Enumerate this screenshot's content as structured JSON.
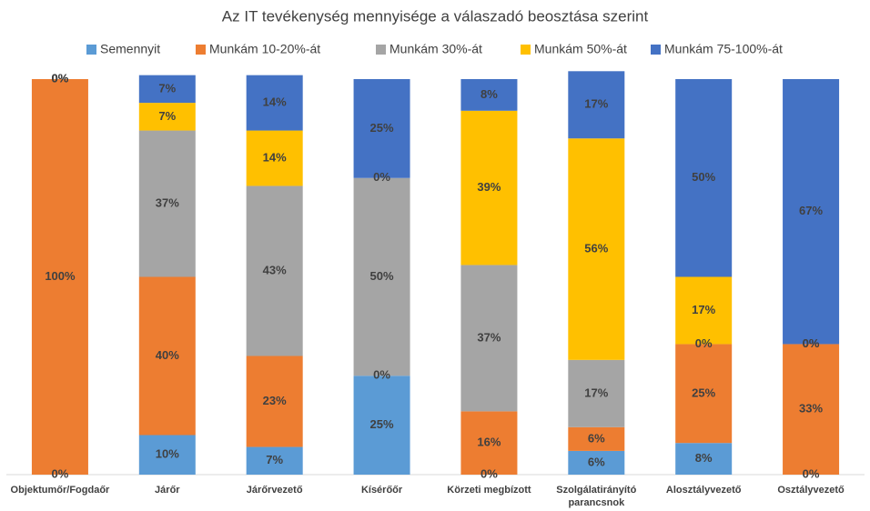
{
  "chart_data": {
    "type": "bar",
    "stacked": true,
    "title": "Az IT tevékenység mennyisége a válaszadó beosztása szerint",
    "categories": [
      "Objektumőr/Fogdaőr",
      "Járőr",
      "Járőrvezető",
      "Kísérőőr",
      "Körzeti megbízott",
      "Szolgálatirányító parancsnok",
      "Alosztályvezető",
      "Osztályvezető"
    ],
    "series": [
      {
        "name": "Semennyit",
        "color": "#5b9bd5",
        "values": [
          0,
          10,
          7,
          25,
          0,
          6,
          8,
          0
        ],
        "value_labels": [
          "0%",
          "10%",
          "7%",
          "25%",
          "0%",
          "6%",
          "8%",
          "0%"
        ]
      },
      {
        "name": "Munkám 10-20%-át",
        "color": "#ed7d31",
        "values": [
          100,
          40,
          23,
          0,
          16,
          6,
          25,
          33
        ],
        "value_labels": [
          "100%",
          "40%",
          "23%",
          "0%",
          "16%",
          "6%",
          "25%",
          "33%"
        ]
      },
      {
        "name": "Munkám 30%-át",
        "color": "#a5a5a5",
        "values": [
          0,
          37,
          43,
          50,
          37,
          17,
          0,
          0
        ],
        "value_labels": [
          "0%",
          "37%",
          "43%",
          "50%",
          "37%",
          "17%",
          "0%",
          "0%"
        ]
      },
      {
        "name": "Munkám 50%-át",
        "color": "#ffc000",
        "values": [
          0,
          7,
          14,
          0,
          39,
          56,
          17,
          0
        ],
        "value_labels": [
          "0%",
          "7%",
          "14%",
          "0%",
          "39%",
          "56%",
          "17%",
          "0%"
        ]
      },
      {
        "name": "Munkám 75-100%-át",
        "color": "#4472c4",
        "values": [
          0,
          7,
          14,
          25,
          8,
          17,
          50,
          67
        ],
        "value_labels": [
          "0%",
          "7%",
          "14%",
          "25%",
          "8%",
          "17%",
          "50%",
          "67%"
        ]
      }
    ],
    "ylim": [
      0,
      100
    ],
    "legend": "top"
  }
}
